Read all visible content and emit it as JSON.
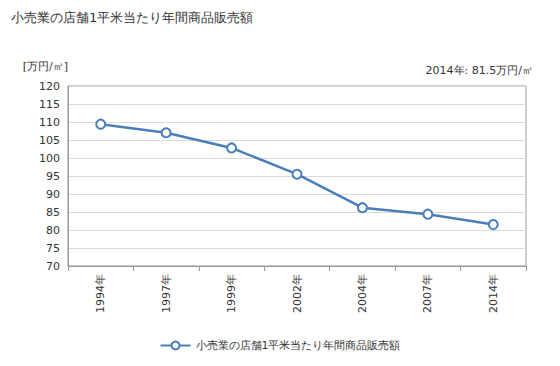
{
  "chart_data": {
    "type": "line",
    "title": "小売業の店舗1平米当たり年間商品販売額",
    "ylabel": "[万円/㎡]",
    "annotations": [
      "2014年: 81.5万円/㎡"
    ],
    "categories": [
      "1994年",
      "1997年",
      "1999年",
      "2002年",
      "2004年",
      "2007年",
      "2014年"
    ],
    "series": [
      {
        "name": "小売業の店舗1平米当たり年間商品販売額",
        "color": "#4a7ebb",
        "marker": "circle",
        "values": [
          109.4,
          107.0,
          102.8,
          95.5,
          86.2,
          84.4,
          81.5
        ]
      }
    ],
    "ylim": [
      70,
      120
    ],
    "yticks": [
      70,
      75,
      80,
      85,
      90,
      95,
      100,
      105,
      110,
      115,
      120
    ],
    "grid": true,
    "legend": "bottom"
  }
}
